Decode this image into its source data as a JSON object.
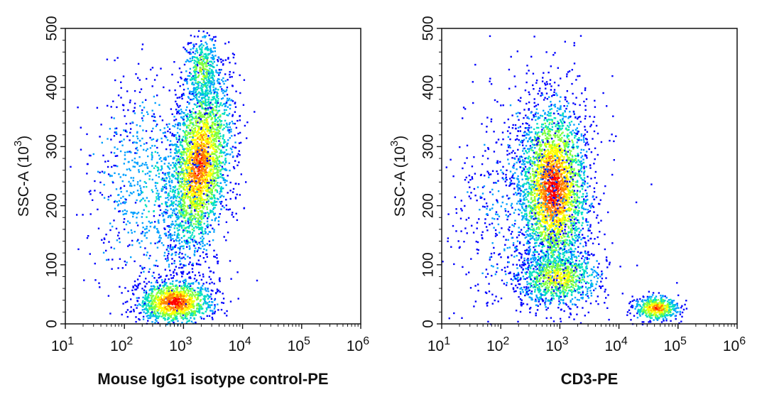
{
  "chart_data": [
    {
      "type": "scatter",
      "subtype": "flow-cytometry density dot plot",
      "xlabel": "Mouse IgG1 isotype control-PE",
      "ylabel": "SSC-A",
      "ylabel_unit": "(10",
      "ylabel_exp": "3",
      "ylabel_close": ")",
      "xscale": "log",
      "xlim": [
        10,
        1000000
      ],
      "ylim": [
        0,
        500
      ],
      "xticks": [
        {
          "base": "10",
          "exp": "1"
        },
        {
          "base": "10",
          "exp": "2"
        },
        {
          "base": "10",
          "exp": "3"
        },
        {
          "base": "10",
          "exp": "4"
        },
        {
          "base": "10",
          "exp": "5"
        },
        {
          "base": "10",
          "exp": "6"
        }
      ],
      "yticks": [
        "0",
        "100",
        "200",
        "300",
        "400",
        "500"
      ],
      "colormap": [
        "#0000ff",
        "#00a0ff",
        "#00e0c0",
        "#80ff40",
        "#ffff00",
        "#ff8000",
        "#ff0000"
      ],
      "populations": [
        {
          "x_center": 1800,
          "y_center": 270,
          "x_spread_decades": 0.25,
          "y_spread": 75,
          "tilt": 0.35,
          "count": 2600,
          "hot": 0.9
        },
        {
          "x_center": 700,
          "y_center": 38,
          "x_spread_decades": 0.3,
          "y_spread": 18,
          "tilt": 0,
          "count": 1200,
          "hot": 1.0
        },
        {
          "x_center": 300,
          "y_center": 230,
          "x_spread_decades": 0.55,
          "y_spread": 90,
          "tilt": 0,
          "count": 900,
          "hot": 0.3
        },
        {
          "x_center": 2000,
          "y_center": 430,
          "x_spread_decades": 0.15,
          "y_spread": 30,
          "tilt": 0,
          "count": 400,
          "hot": 0.6
        }
      ]
    },
    {
      "type": "scatter",
      "subtype": "flow-cytometry density dot plot",
      "xlabel": "CD3-PE",
      "ylabel": "SSC-A",
      "ylabel_unit": "(10",
      "ylabel_exp": "3",
      "ylabel_close": ")",
      "xscale": "log",
      "xlim": [
        10,
        1000000
      ],
      "ylim": [
        0,
        500
      ],
      "xticks": [
        {
          "base": "10",
          "exp": "1"
        },
        {
          "base": "10",
          "exp": "2"
        },
        {
          "base": "10",
          "exp": "3"
        },
        {
          "base": "10",
          "exp": "4"
        },
        {
          "base": "10",
          "exp": "5"
        },
        {
          "base": "10",
          "exp": "6"
        }
      ],
      "yticks": [
        "0",
        "100",
        "200",
        "300",
        "400",
        "500"
      ],
      "colormap": [
        "#0000ff",
        "#00a0ff",
        "#00e0c0",
        "#80ff40",
        "#ffff00",
        "#ff8000",
        "#ff0000"
      ],
      "populations": [
        {
          "x_center": 750,
          "y_center": 230,
          "x_spread_decades": 0.28,
          "y_spread": 70,
          "tilt": 0,
          "count": 2800,
          "hot": 1.0
        },
        {
          "x_center": 900,
          "y_center": 80,
          "x_spread_decades": 0.35,
          "y_spread": 25,
          "tilt": 0,
          "count": 900,
          "hot": 0.7
        },
        {
          "x_center": 42000,
          "y_center": 28,
          "x_spread_decades": 0.18,
          "y_spread": 10,
          "tilt": 0,
          "count": 500,
          "hot": 0.9
        },
        {
          "x_center": 250,
          "y_center": 200,
          "x_spread_decades": 0.6,
          "y_spread": 110,
          "tilt": 0,
          "count": 900,
          "hot": 0.2
        }
      ]
    }
  ]
}
